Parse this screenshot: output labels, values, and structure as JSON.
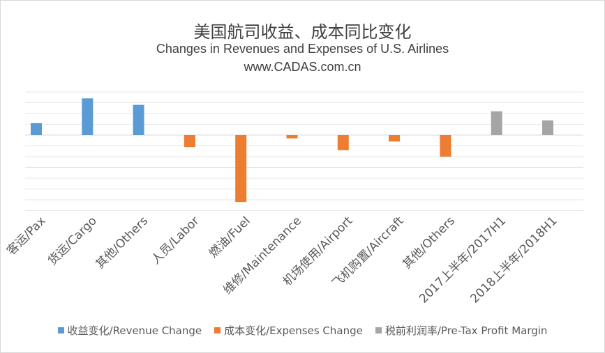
{
  "chart_data": {
    "type": "bar",
    "title": "美国航司收益、成本同比变化",
    "subtitle": "Changes in Revenues and Expenses of U.S. Airlines",
    "source_text": "www.CADAS.com.cn",
    "categories": [
      "客运/Pax",
      "货运/Cargo",
      "其他/Others",
      "人员/Labor",
      "燃油/Fuel",
      "维修/Maintenance",
      "机场使用/Airport",
      "飞机购置/Aircraft",
      "其他/Others",
      "2017上半年/2017H1",
      "2018上半年/2018H1"
    ],
    "series": [
      {
        "name": "收益变化/Revenue Change",
        "color": "#5b9bd5",
        "values": [
          5.5,
          17,
          14,
          null,
          null,
          null,
          null,
          null,
          null,
          null,
          null
        ]
      },
      {
        "name": "成本变化/Expenses Change",
        "color": "#ed7d31",
        "values": [
          null,
          null,
          null,
          -5.5,
          -31,
          -1.5,
          -7,
          -3,
          -10,
          null,
          null
        ]
      },
      {
        "name": "税前利润率/Pre-Tax Profit Margin",
        "color": "#a5a5a5",
        "values": [
          null,
          null,
          null,
          null,
          null,
          null,
          null,
          null,
          null,
          11,
          6.8
        ]
      }
    ],
    "ylim": [
      -35,
      20
    ],
    "grid": true,
    "legend_position": "bottom"
  }
}
